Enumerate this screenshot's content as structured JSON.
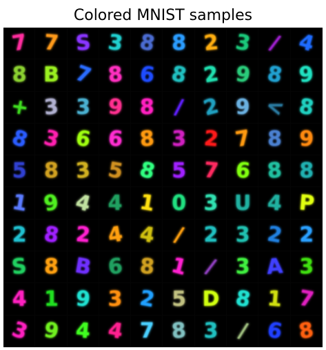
{
  "figure": {
    "title": "Colored MNIST samples"
  },
  "grid": {
    "rows": [
      [
        {
          "digit": "7",
          "color": "#ff2d9e",
          "rot": -10
        },
        {
          "digit": "7",
          "color": "#ff9a1a",
          "rot": 5
        },
        {
          "digit": "S",
          "color": "#8a35ff",
          "rot": -5
        },
        {
          "digit": "3",
          "color": "#20d0d0",
          "rot": 8
        },
        {
          "digit": "8",
          "color": "#4a6bd0",
          "rot": 12
        },
        {
          "digit": "8",
          "color": "#2a9cff",
          "rot": 0
        },
        {
          "digit": "2",
          "color": "#ffae10",
          "rot": -6
        },
        {
          "digit": "3",
          "color": "#1ac87a",
          "rot": 10
        },
        {
          "digit": "/",
          "color": "#a020d0",
          "rot": 20
        },
        {
          "digit": "4",
          "color": "#1e6cff",
          "rot": 15
        }
      ],
      [
        {
          "digit": "8",
          "color": "#8ad030",
          "rot": 0
        },
        {
          "digit": "B",
          "color": "#9af020",
          "rot": 0
        },
        {
          "digit": "7",
          "color": "#2a6cff",
          "rot": 20
        },
        {
          "digit": "8",
          "color": "#ff30c0",
          "rot": -5
        },
        {
          "digit": "6",
          "color": "#1e4cff",
          "rot": 8
        },
        {
          "digit": "8",
          "color": "#20c0c0",
          "rot": 12
        },
        {
          "digit": "2",
          "color": "#20e0b0",
          "rot": -10
        },
        {
          "digit": "9",
          "color": "#2acb7a",
          "rot": 8
        },
        {
          "digit": "8",
          "color": "#20a0d0",
          "rot": 10
        },
        {
          "digit": "9",
          "color": "#20e0c0",
          "rot": -5
        }
      ],
      [
        {
          "digit": "+",
          "color": "#40e020",
          "rot": 10
        },
        {
          "digit": "3",
          "color": "#b0b0d0",
          "rot": -5
        },
        {
          "digit": "3",
          "color": "#4ab0d0",
          "rot": 0
        },
        {
          "digit": "9",
          "color": "#ff3090",
          "rot": 5
        },
        {
          "digit": "8",
          "color": "#ff20c0",
          "rot": 0
        },
        {
          "digit": "/",
          "color": "#6020ff",
          "rot": 10
        },
        {
          "digit": "2",
          "color": "#20a0c0",
          "rot": -15
        },
        {
          "digit": "9",
          "color": "#6ab0e0",
          "rot": 0
        },
        {
          "digit": "<",
          "color": "#2a7aa0",
          "rot": 20
        },
        {
          "digit": "8",
          "color": "#20d0c0",
          "rot": 10
        }
      ],
      [
        {
          "digit": "8",
          "color": "#2a5cff",
          "rot": 20
        },
        {
          "digit": "3",
          "color": "#ff20b0",
          "rot": 15
        },
        {
          "digit": "6",
          "color": "#a0ff10",
          "rot": 10
        },
        {
          "digit": "6",
          "color": "#ff2dd0",
          "rot": 5
        },
        {
          "digit": "8",
          "color": "#ff9a10",
          "rot": -5
        },
        {
          "digit": "3",
          "color": "#d020c0",
          "rot": 0
        },
        {
          "digit": "2",
          "color": "#ff1a1a",
          "rot": 5
        },
        {
          "digit": "7",
          "color": "#ff9a10",
          "rot": -10
        },
        {
          "digit": "8",
          "color": "#4a80d0",
          "rot": 0
        },
        {
          "digit": "9",
          "color": "#ff8a10",
          "rot": 0
        }
      ],
      [
        {
          "digit": "5",
          "color": "#3040d0",
          "rot": 0
        },
        {
          "digit": "8",
          "color": "#d0a020",
          "rot": 0
        },
        {
          "digit": "3",
          "color": "#d0b020",
          "rot": -5
        },
        {
          "digit": "5",
          "color": "#d09020",
          "rot": 10
        },
        {
          "digit": "8",
          "color": "#30ff80",
          "rot": 15
        },
        {
          "digit": "5",
          "color": "#a020ff",
          "rot": 0
        },
        {
          "digit": "7",
          "color": "#ff2a60",
          "rot": 5
        },
        {
          "digit": "6",
          "color": "#80ff10",
          "rot": 5
        },
        {
          "digit": "8",
          "color": "#20c0a0",
          "rot": -5
        },
        {
          "digit": "8",
          "color": "#20b0b0",
          "rot": 0
        }
      ],
      [
        {
          "digit": "1",
          "color": "#5a7aff",
          "rot": 10
        },
        {
          "digit": "9",
          "color": "#50f020",
          "rot": -10
        },
        {
          "digit": "4",
          "color": "#c0e0a0",
          "rot": 15
        },
        {
          "digit": "4",
          "color": "#20a060",
          "rot": 0
        },
        {
          "digit": "1",
          "color": "#ffe010",
          "rot": 10
        },
        {
          "digit": "0",
          "color": "#20e080",
          "rot": 0
        },
        {
          "digit": "3",
          "color": "#30e0b0",
          "rot": 0
        },
        {
          "digit": "U",
          "color": "#20b0a0",
          "rot": 0
        },
        {
          "digit": "4",
          "color": "#20b0a0",
          "rot": 5
        },
        {
          "digit": "P",
          "color": "#e0ff10",
          "rot": 5
        }
      ],
      [
        {
          "digit": "2",
          "color": "#20c0d0",
          "rot": 0
        },
        {
          "digit": "8",
          "color": "#a020ff",
          "rot": 10
        },
        {
          "digit": "2",
          "color": "#ff20d0",
          "rot": 5
        },
        {
          "digit": "4",
          "color": "#ffa010",
          "rot": -10
        },
        {
          "digit": "4",
          "color": "#d0c010",
          "rot": 10
        },
        {
          "digit": "/",
          "color": "#ffa010",
          "rot": 15
        },
        {
          "digit": "2",
          "color": "#20c0c0",
          "rot": 0
        },
        {
          "digit": "3",
          "color": "#20c0b0",
          "rot": 0
        },
        {
          "digit": "2",
          "color": "#2080e0",
          "rot": 10
        },
        {
          "digit": "2",
          "color": "#2aa0ff",
          "rot": 0
        }
      ],
      [
        {
          "digit": "S",
          "color": "#20d060",
          "rot": -5
        },
        {
          "digit": "8",
          "color": "#ffa010",
          "rot": 0
        },
        {
          "digit": "B",
          "color": "#7030ff",
          "rot": 10
        },
        {
          "digit": "6",
          "color": "#20a060",
          "rot": -5
        },
        {
          "digit": "8",
          "color": "#d0a020",
          "rot": 5
        },
        {
          "digit": "1",
          "color": "#ff20d0",
          "rot": 15
        },
        {
          "digit": "/",
          "color": "#9040c0",
          "rot": 20
        },
        {
          "digit": "3",
          "color": "#40f040",
          "rot": 0
        },
        {
          "digit": "A",
          "color": "#4040ff",
          "rot": -5
        },
        {
          "digit": "3",
          "color": "#40e010",
          "rot": 0
        }
      ],
      [
        {
          "digit": "4",
          "color": "#ff20c0",
          "rot": 0
        },
        {
          "digit": "1",
          "color": "#20e020",
          "rot": 0
        },
        {
          "digit": "9",
          "color": "#20e0d0",
          "rot": 5
        },
        {
          "digit": "3",
          "color": "#ff9010",
          "rot": 0
        },
        {
          "digit": "2",
          "color": "#20a0ff",
          "rot": 10
        },
        {
          "digit": "5",
          "color": "#c0c080",
          "rot": 0
        },
        {
          "digit": "D",
          "color": "#d0ff10",
          "rot": 0
        },
        {
          "digit": "8",
          "color": "#20e0d0",
          "rot": 10
        },
        {
          "digit": "1",
          "color": "#d0e010",
          "rot": 5
        },
        {
          "digit": "7",
          "color": "#e020c0",
          "rot": 10
        }
      ],
      [
        {
          "digit": "3",
          "color": "#ff20c0",
          "rot": 20
        },
        {
          "digit": "9",
          "color": "#70f020",
          "rot": 10
        },
        {
          "digit": "4",
          "color": "#40ff20",
          "rot": 5
        },
        {
          "digit": "4",
          "color": "#ff2090",
          "rot": 10
        },
        {
          "digit": "7",
          "color": "#4ad0ff",
          "rot": 0
        },
        {
          "digit": "8",
          "color": "#80c0c0",
          "rot": -5
        },
        {
          "digit": "3",
          "color": "#20c0c0",
          "rot": 0
        },
        {
          "digit": "/",
          "color": "#a0c080",
          "rot": 15
        },
        {
          "digit": "6",
          "color": "#2040ff",
          "rot": 10
        },
        {
          "digit": "8",
          "color": "#ff6010",
          "rot": -10
        }
      ]
    ]
  }
}
